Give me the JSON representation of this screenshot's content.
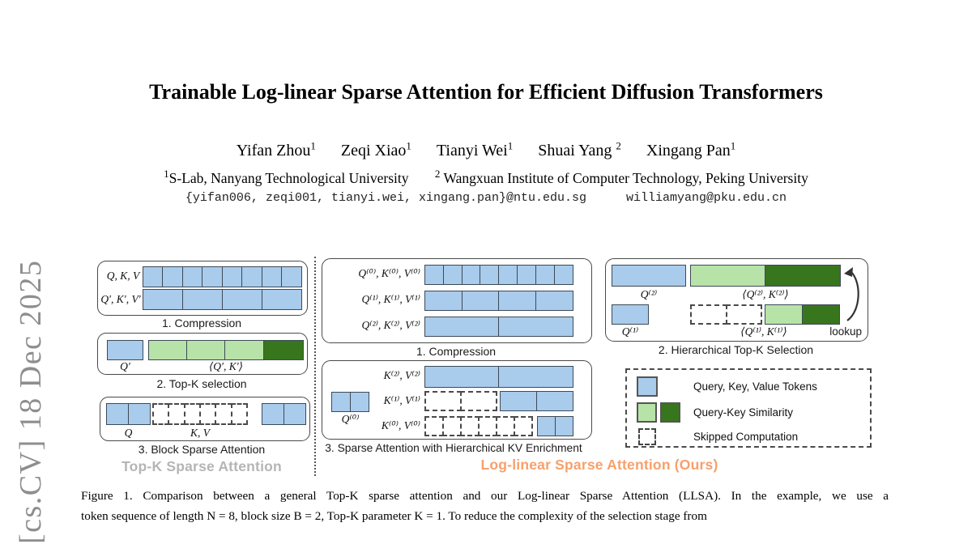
{
  "page": {
    "arxiv_side": "[cs.CV] 18 Dec 2025"
  },
  "header": {
    "title": "Trainable Log-linear Sparse Attention for Efficient Diffusion Transformers",
    "authors": [
      {
        "name": "Yifan Zhou",
        "sup": "1"
      },
      {
        "name": "Zeqi Xiao",
        "sup": "1"
      },
      {
        "name": "Tianyi Wei",
        "sup": "1"
      },
      {
        "name": "Shuai Yang ",
        "sup": "2"
      },
      {
        "name": "Xingang Pan",
        "sup": "1"
      }
    ],
    "affiliations": [
      {
        "sup": "1",
        "text": "S-Lab, Nanyang Technological University"
      },
      {
        "sup": "2",
        "text": " Wangxuan Institute of Computer Technology, Peking University"
      }
    ],
    "emails": {
      "ntu_group": "{yifan006, zeqi001, tianyi.wei, xingang.pan}@ntu.edu.sg",
      "pku": "williamyang@pku.edu.cn"
    }
  },
  "figure": {
    "left_panel": {
      "compression": {
        "full_label": "Q, K, V",
        "full_cells": 8,
        "compressed_label": "Q′, K′, V′",
        "compressed_cells": 4,
        "caption": "1. Compression"
      },
      "topk": {
        "query_label": "Q′",
        "light_cells": 3,
        "sim_label": "⟨Q′, K′⟩",
        "caption": "2. Top-K selection"
      },
      "block_sparse": {
        "query_label": "Q",
        "query_cells": 2,
        "skipped_cells": 6,
        "kv_label": "K, V",
        "selected_cells": 2,
        "caption": "3. Block Sparse Attention"
      },
      "title": "Top-K Sparse Attention"
    },
    "middle_panel": {
      "compression": {
        "rows": [
          {
            "label": "Q⁽⁰⁾, K⁽⁰⁾, V⁽⁰⁾",
            "cells": 8
          },
          {
            "label": "Q⁽¹⁾, K⁽¹⁾, V⁽¹⁾",
            "cells": 4
          },
          {
            "label": "Q⁽²⁾, K⁽²⁾, V⁽²⁾",
            "cells": 2
          }
        ],
        "caption": "1. Compression"
      },
      "sparse": {
        "query_label": "Q⁽⁰⁾",
        "query_cells": 2,
        "rows": [
          {
            "label": "K⁽²⁾, V⁽²⁾",
            "skipped": 0,
            "selected": 2
          },
          {
            "label": "K⁽¹⁾, V⁽¹⁾",
            "skipped": 2,
            "selected": 2
          },
          {
            "label": "K⁽⁰⁾, V⁽⁰⁾",
            "skipped": 6,
            "selected": 2
          }
        ],
        "caption": "3. Sparse Attention with Hierarchical KV Enrichment"
      },
      "title": "Log-linear Sparse Attention (Ours)"
    },
    "right_panel": {
      "hier_topk": {
        "row1_query_label": "Q⁽²⁾",
        "row1_sim_label": "⟨Q⁽²⁾, K⁽²⁾⟩",
        "row2_query_label": "Q⁽¹⁾",
        "row2_skipped_cells": 2,
        "row2_sim_label": "⟨Q⁽¹⁾, K⁽¹⁾⟩",
        "lookup_label": "lookup",
        "caption": "2. Hierarchical Top-K Selection"
      },
      "legend": {
        "items": [
          {
            "label": "Query, Key, Value Tokens"
          },
          {
            "label": "Query-Key Similarity"
          },
          {
            "label": "Skipped Computation"
          }
        ]
      }
    },
    "colors": {
      "token_blue": "#a9cbec",
      "similarity_light_green": "#b7e3a8",
      "similarity_dark_green": "#38761d",
      "ours_orange": "#f7a06c",
      "baseline_gray": "#b5b5b5"
    }
  },
  "caption": {
    "line1": "Figure 1. Comparison between a general Top-K sparse attention and our Log-linear Sparse Attention (LLSA). In the example, we use a",
    "line2": "token sequence of length N = 8, block size B = 2, Top-K parameter K = 1. To reduce the complexity of the selection stage from"
  }
}
